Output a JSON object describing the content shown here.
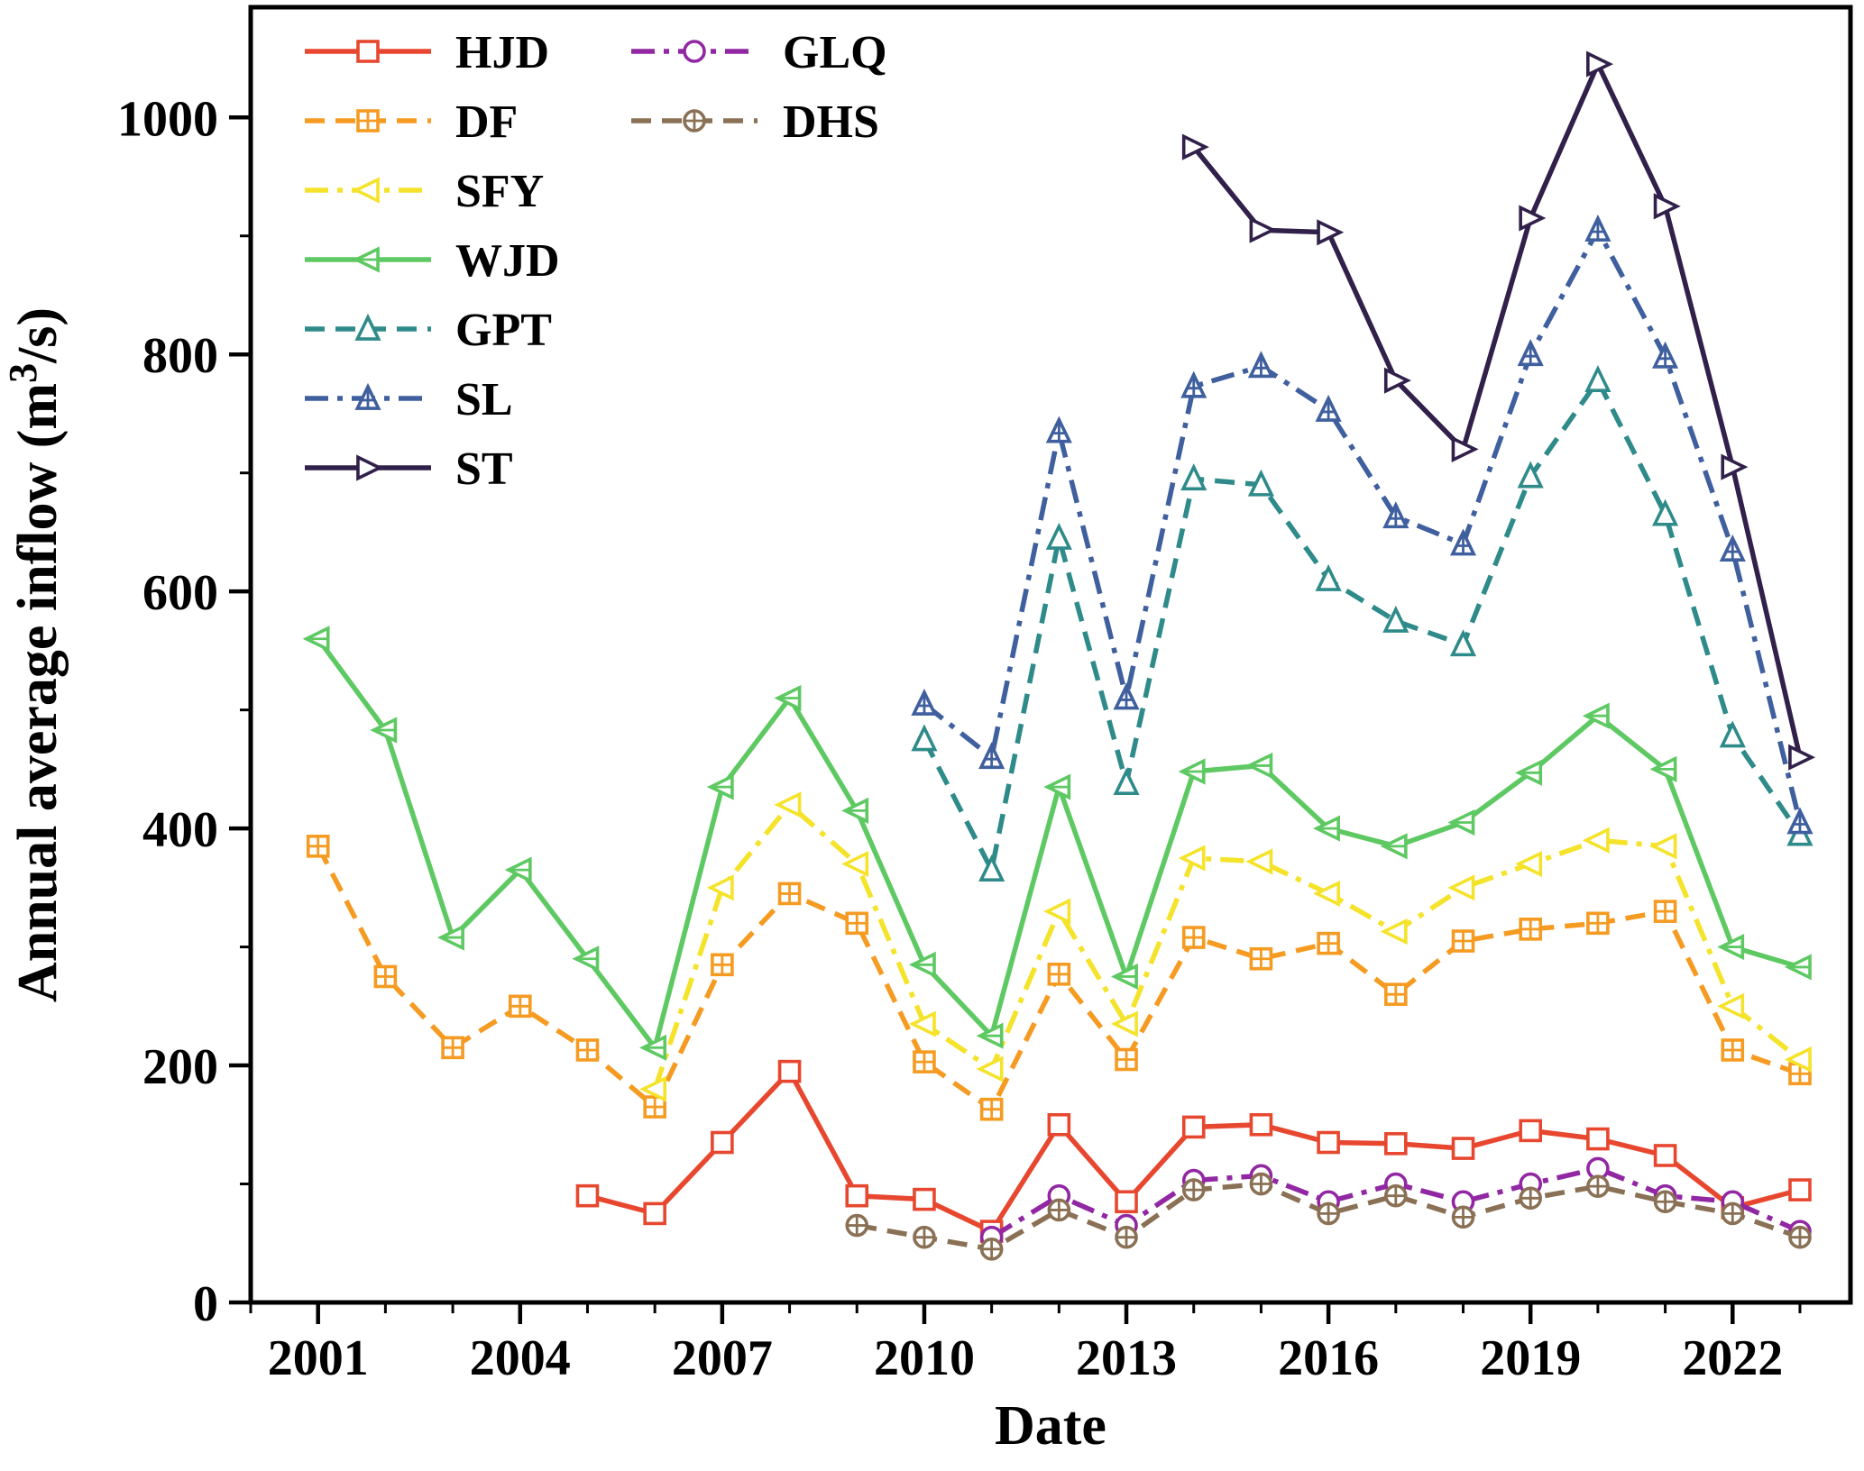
{
  "chart_data": {
    "type": "line",
    "title": "",
    "xlabel": "Date",
    "ylabel": "Annual average inflow (m³/s)",
    "xlim": [
      2000,
      2023.75
    ],
    "ylim": [
      0,
      1093
    ],
    "xticks": [
      2001,
      2004,
      2007,
      2010,
      2013,
      2016,
      2019,
      2022
    ],
    "yticks": [
      0,
      200,
      400,
      600,
      800,
      1000
    ],
    "minor_x_step": 1,
    "minor_y_step": 100,
    "grid": false,
    "legend_position": "top-left",
    "legend_columns": [
      [
        "HJD",
        "DF",
        "SFY",
        "WJD",
        "GPT",
        "SL",
        "ST"
      ],
      [
        "GLQ",
        "DHS"
      ]
    ],
    "frame_color": "#000000",
    "background": "#ffffff",
    "series": [
      {
        "name": "HJD",
        "color": "#e8472f",
        "dash": null,
        "marker": "square",
        "points": [
          [
            2005,
            90
          ],
          [
            2006,
            75
          ],
          [
            2007,
            135
          ],
          [
            2008,
            195
          ],
          [
            2009,
            90
          ],
          [
            2010,
            87
          ],
          [
            2011,
            60
          ],
          [
            2012,
            150
          ],
          [
            2013,
            85
          ],
          [
            2014,
            148
          ],
          [
            2015,
            150
          ],
          [
            2016,
            135
          ],
          [
            2017,
            134
          ],
          [
            2018,
            130
          ],
          [
            2019,
            145
          ],
          [
            2020,
            138
          ],
          [
            2021,
            124
          ],
          [
            2022,
            80
          ],
          [
            2023,
            95
          ]
        ]
      },
      {
        "name": "DF",
        "color": "#f59b22",
        "dash": "22,12",
        "marker": "square-plus",
        "points": [
          [
            2001,
            385
          ],
          [
            2002,
            275
          ],
          [
            2003,
            215
          ],
          [
            2004,
            250
          ],
          [
            2005,
            213
          ],
          [
            2006,
            165
          ],
          [
            2007,
            285
          ],
          [
            2008,
            345
          ],
          [
            2009,
            320
          ],
          [
            2010,
            203
          ],
          [
            2011,
            163
          ],
          [
            2012,
            277
          ],
          [
            2013,
            205
          ],
          [
            2014,
            308
          ],
          [
            2015,
            290
          ],
          [
            2016,
            303
          ],
          [
            2017,
            260
          ],
          [
            2018,
            305
          ],
          [
            2019,
            315
          ],
          [
            2020,
            320
          ],
          [
            2021,
            330
          ],
          [
            2022,
            213
          ],
          [
            2023,
            193
          ]
        ]
      },
      {
        "name": "SFY",
        "color": "#f5e32b",
        "dash": "26,10,6,10",
        "marker": "triangle-left",
        "points": [
          [
            2006,
            180
          ],
          [
            2007,
            350
          ],
          [
            2008,
            420
          ],
          [
            2009,
            370
          ],
          [
            2010,
            235
          ],
          [
            2011,
            197
          ],
          [
            2012,
            330
          ],
          [
            2013,
            235
          ],
          [
            2014,
            375
          ],
          [
            2015,
            372
          ],
          [
            2016,
            345
          ],
          [
            2017,
            313
          ],
          [
            2018,
            350
          ],
          [
            2019,
            370
          ],
          [
            2020,
            390
          ],
          [
            2021,
            385
          ],
          [
            2022,
            250
          ],
          [
            2023,
            205
          ]
        ]
      },
      {
        "name": "WJD",
        "color": "#5ec963",
        "dash": null,
        "marker": "triangle-left-bar",
        "points": [
          [
            2001,
            560
          ],
          [
            2002,
            483
          ],
          [
            2003,
            308
          ],
          [
            2004,
            365
          ],
          [
            2005,
            290
          ],
          [
            2006,
            215
          ],
          [
            2007,
            435
          ],
          [
            2008,
            510
          ],
          [
            2009,
            415
          ],
          [
            2010,
            285
          ],
          [
            2011,
            225
          ],
          [
            2012,
            435
          ],
          [
            2013,
            275
          ],
          [
            2014,
            448
          ],
          [
            2015,
            453
          ],
          [
            2016,
            400
          ],
          [
            2017,
            385
          ],
          [
            2018,
            405
          ],
          [
            2019,
            447
          ],
          [
            2020,
            495
          ],
          [
            2021,
            450
          ],
          [
            2022,
            300
          ],
          [
            2023,
            283
          ]
        ]
      },
      {
        "name": "GPT",
        "color": "#2e8b8a",
        "dash": "22,12",
        "marker": "triangle-up",
        "points": [
          [
            2010,
            475
          ],
          [
            2011,
            365
          ],
          [
            2012,
            645
          ],
          [
            2013,
            438
          ],
          [
            2014,
            695
          ],
          [
            2015,
            690
          ],
          [
            2016,
            610
          ],
          [
            2017,
            575
          ],
          [
            2018,
            555
          ],
          [
            2019,
            697
          ],
          [
            2020,
            778
          ],
          [
            2021,
            665
          ],
          [
            2022,
            478
          ],
          [
            2023,
            395
          ]
        ]
      },
      {
        "name": "SL",
        "color": "#3f5f9e",
        "dash": "26,10,6,10",
        "marker": "triangle-up-plus",
        "points": [
          [
            2010,
            505
          ],
          [
            2011,
            460
          ],
          [
            2012,
            735
          ],
          [
            2013,
            510
          ],
          [
            2014,
            773
          ],
          [
            2015,
            790
          ],
          [
            2016,
            753
          ],
          [
            2017,
            663
          ],
          [
            2018,
            640
          ],
          [
            2019,
            800
          ],
          [
            2020,
            905
          ],
          [
            2021,
            798
          ],
          [
            2022,
            635
          ],
          [
            2023,
            405
          ]
        ]
      },
      {
        "name": "ST",
        "color": "#31204a",
        "dash": null,
        "marker": "triangle-right",
        "points": [
          [
            2014,
            975
          ],
          [
            2015,
            905
          ],
          [
            2016,
            903
          ],
          [
            2017,
            778
          ],
          [
            2018,
            720
          ],
          [
            2019,
            915
          ],
          [
            2020,
            1045
          ],
          [
            2021,
            925
          ],
          [
            2022,
            705
          ],
          [
            2023,
            460
          ]
        ]
      },
      {
        "name": "GLQ",
        "color": "#9127a3",
        "dash": "26,10,6,10",
        "marker": "circle",
        "points": [
          [
            2011,
            55
          ],
          [
            2012,
            90
          ],
          [
            2013,
            65
          ],
          [
            2014,
            103
          ],
          [
            2015,
            107
          ],
          [
            2016,
            85
          ],
          [
            2017,
            100
          ],
          [
            2018,
            85
          ],
          [
            2019,
            100
          ],
          [
            2020,
            113
          ],
          [
            2021,
            90
          ],
          [
            2022,
            85
          ],
          [
            2023,
            60
          ]
        ]
      },
      {
        "name": "DHS",
        "color": "#8a7054",
        "dash": "22,12",
        "marker": "circle-plus",
        "points": [
          [
            2009,
            65
          ],
          [
            2010,
            55
          ],
          [
            2011,
            45
          ],
          [
            2012,
            78
          ],
          [
            2013,
            55
          ],
          [
            2014,
            95
          ],
          [
            2015,
            100
          ],
          [
            2016,
            75
          ],
          [
            2017,
            90
          ],
          [
            2018,
            72
          ],
          [
            2019,
            88
          ],
          [
            2020,
            98
          ],
          [
            2021,
            85
          ],
          [
            2022,
            75
          ],
          [
            2023,
            55
          ]
        ]
      }
    ]
  }
}
